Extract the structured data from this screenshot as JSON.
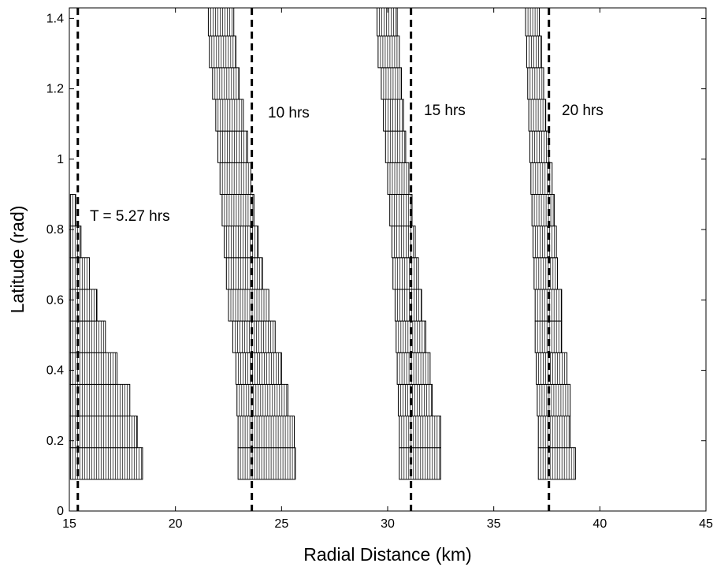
{
  "chart_data": {
    "type": "bar",
    "xlabel": "Radial Distance (km)",
    "ylabel": "Latitude (rad)",
    "xlim": [
      15,
      45
    ],
    "ylim": [
      0,
      1.43
    ],
    "xticks": [
      15,
      20,
      25,
      30,
      35,
      40,
      45
    ],
    "yticks": [
      0,
      0.2,
      0.4,
      0.6,
      0.8,
      1,
      1.2,
      1.4
    ],
    "grid": false,
    "series": [
      {
        "label": "T = 5.27 hrs",
        "front": 15.4,
        "boxes": [
          {
            "lat": [
              0.09,
              0.18
            ],
            "r": [
              15.05,
              18.45
            ]
          },
          {
            "lat": [
              0.18,
              0.27
            ],
            "r": [
              15.05,
              18.2
            ]
          },
          {
            "lat": [
              0.27,
              0.36
            ],
            "r": [
              15.05,
              17.85
            ]
          },
          {
            "lat": [
              0.36,
              0.45
            ],
            "r": [
              15.05,
              17.25
            ]
          },
          {
            "lat": [
              0.45,
              0.54
            ],
            "r": [
              15.05,
              16.7
            ]
          },
          {
            "lat": [
              0.54,
              0.63
            ],
            "r": [
              15.05,
              16.3
            ]
          },
          {
            "lat": [
              0.63,
              0.72
            ],
            "r": [
              15.05,
              15.95
            ]
          },
          {
            "lat": [
              0.72,
              0.81
            ],
            "r": [
              15.05,
              15.55
            ]
          },
          {
            "lat": [
              0.81,
              0.9
            ],
            "r": [
              15.05,
              15.3
            ]
          }
        ]
      },
      {
        "label": "10 hrs",
        "front": 23.6,
        "boxes": [
          {
            "lat": [
              0.09,
              0.18
            ],
            "r": [
              22.95,
              25.65
            ]
          },
          {
            "lat": [
              0.18,
              0.27
            ],
            "r": [
              22.95,
              25.6
            ]
          },
          {
            "lat": [
              0.27,
              0.36
            ],
            "r": [
              22.9,
              25.3
            ]
          },
          {
            "lat": [
              0.36,
              0.45
            ],
            "r": [
              22.85,
              25.0
            ]
          },
          {
            "lat": [
              0.45,
              0.54
            ],
            "r": [
              22.7,
              24.7
            ]
          },
          {
            "lat": [
              0.54,
              0.63
            ],
            "r": [
              22.5,
              24.4
            ]
          },
          {
            "lat": [
              0.63,
              0.72
            ],
            "r": [
              22.4,
              24.1
            ]
          },
          {
            "lat": [
              0.72,
              0.81
            ],
            "r": [
              22.3,
              23.9
            ]
          },
          {
            "lat": [
              0.81,
              0.9
            ],
            "r": [
              22.2,
              23.7
            ]
          },
          {
            "lat": [
              0.9,
              0.99
            ],
            "r": [
              22.1,
              23.55
            ]
          },
          {
            "lat": [
              0.99,
              1.08
            ],
            "r": [
              22.0,
              23.4
            ]
          },
          {
            "lat": [
              1.08,
              1.17
            ],
            "r": [
              21.9,
              23.2
            ]
          },
          {
            "lat": [
              1.17,
              1.26
            ],
            "r": [
              21.75,
              23.0
            ]
          },
          {
            "lat": [
              1.26,
              1.35
            ],
            "r": [
              21.6,
              22.85
            ]
          },
          {
            "lat": [
              1.35,
              1.44
            ],
            "r": [
              21.55,
              22.75
            ]
          },
          {
            "lat": [
              1.44,
              1.53
            ],
            "r": [
              21.45,
              22.65
            ]
          }
        ]
      },
      {
        "label": "15 hrs",
        "front": 31.1,
        "boxes": [
          {
            "lat": [
              0.09,
              0.18
            ],
            "r": [
              30.55,
              32.5
            ]
          },
          {
            "lat": [
              0.18,
              0.27
            ],
            "r": [
              30.55,
              32.5
            ]
          },
          {
            "lat": [
              0.27,
              0.36
            ],
            "r": [
              30.5,
              32.1
            ]
          },
          {
            "lat": [
              0.36,
              0.45
            ],
            "r": [
              30.45,
              32.0
            ]
          },
          {
            "lat": [
              0.45,
              0.54
            ],
            "r": [
              30.4,
              31.8
            ]
          },
          {
            "lat": [
              0.54,
              0.63
            ],
            "r": [
              30.35,
              31.6
            ]
          },
          {
            "lat": [
              0.63,
              0.72
            ],
            "r": [
              30.25,
              31.45
            ]
          },
          {
            "lat": [
              0.72,
              0.81
            ],
            "r": [
              30.2,
              31.3
            ]
          },
          {
            "lat": [
              0.81,
              0.9
            ],
            "r": [
              30.1,
              31.15
            ]
          },
          {
            "lat": [
              0.9,
              0.99
            ],
            "r": [
              30.0,
              31.0
            ]
          },
          {
            "lat": [
              0.99,
              1.08
            ],
            "r": [
              29.9,
              30.85
            ]
          },
          {
            "lat": [
              1.08,
              1.17
            ],
            "r": [
              29.8,
              30.75
            ]
          },
          {
            "lat": [
              1.17,
              1.26
            ],
            "r": [
              29.7,
              30.65
            ]
          },
          {
            "lat": [
              1.26,
              1.35
            ],
            "r": [
              29.55,
              30.55
            ]
          },
          {
            "lat": [
              1.35,
              1.44
            ],
            "r": [
              29.5,
              30.45
            ]
          },
          {
            "lat": [
              1.44,
              1.53
            ],
            "r": [
              29.45,
              30.4
            ]
          }
        ]
      },
      {
        "label": "20 hrs",
        "front": 37.6,
        "boxes": [
          {
            "lat": [
              0.09,
              0.18
            ],
            "r": [
              37.1,
              38.85
            ]
          },
          {
            "lat": [
              0.18,
              0.27
            ],
            "r": [
              37.1,
              38.6
            ]
          },
          {
            "lat": [
              0.27,
              0.36
            ],
            "r": [
              37.05,
              38.6
            ]
          },
          {
            "lat": [
              0.36,
              0.45
            ],
            "r": [
              37.0,
              38.45
            ]
          },
          {
            "lat": [
              0.45,
              0.54
            ],
            "r": [
              36.95,
              38.2
            ]
          },
          {
            "lat": [
              0.54,
              0.63
            ],
            "r": [
              36.95,
              38.2
            ]
          },
          {
            "lat": [
              0.63,
              0.72
            ],
            "r": [
              36.9,
              38.0
            ]
          },
          {
            "lat": [
              0.72,
              0.81
            ],
            "r": [
              36.85,
              37.95
            ]
          },
          {
            "lat": [
              0.81,
              0.9
            ],
            "r": [
              36.8,
              37.85
            ]
          },
          {
            "lat": [
              0.9,
              0.99
            ],
            "r": [
              36.75,
              37.75
            ]
          },
          {
            "lat": [
              0.99,
              1.08
            ],
            "r": [
              36.7,
              37.6
            ]
          },
          {
            "lat": [
              1.08,
              1.17
            ],
            "r": [
              36.65,
              37.45
            ]
          },
          {
            "lat": [
              1.17,
              1.26
            ],
            "r": [
              36.6,
              37.35
            ]
          },
          {
            "lat": [
              1.26,
              1.35
            ],
            "r": [
              36.55,
              37.25
            ]
          },
          {
            "lat": [
              1.35,
              1.44
            ],
            "r": [
              36.5,
              37.15
            ]
          },
          {
            "lat": [
              1.44,
              1.53
            ],
            "r": [
              36.45,
              37.1
            ]
          }
        ]
      }
    ]
  }
}
